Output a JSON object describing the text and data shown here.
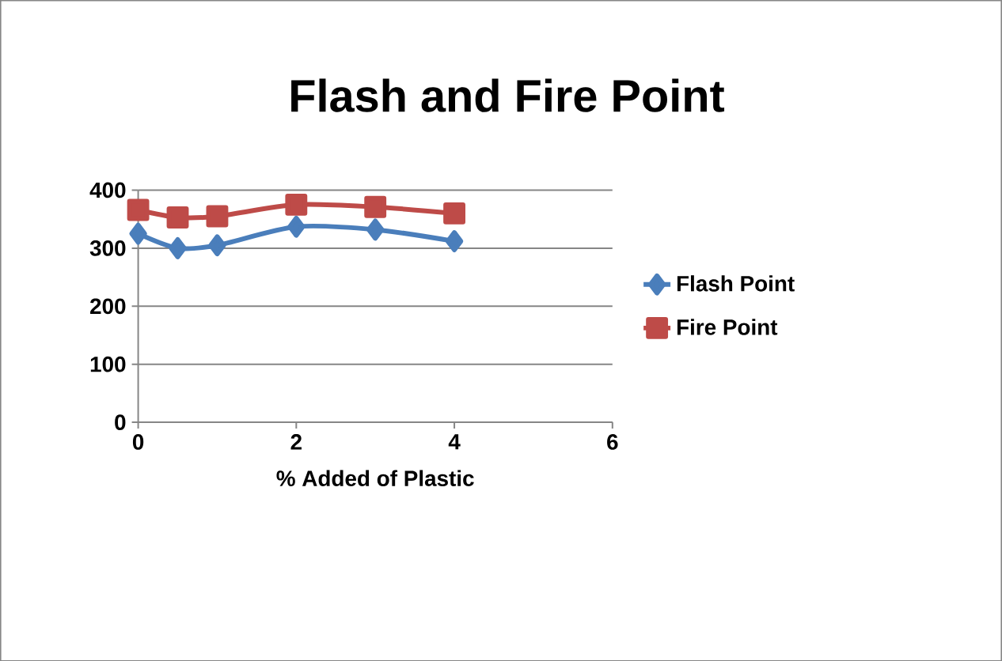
{
  "chart_data": {
    "type": "line",
    "title": "Flash and Fire Point",
    "xlabel": "% Added of Plastic",
    "x": [
      0,
      0.5,
      1,
      2,
      3,
      4
    ],
    "series": [
      {
        "name": "Flash Point",
        "color": "#4a7ebb",
        "marker": "diamond",
        "values": [
          325,
          300,
          305,
          337,
          332,
          312
        ]
      },
      {
        "name": "Fire Point",
        "color": "#be4b48",
        "marker": "square",
        "values": [
          366,
          353,
          355,
          375,
          371,
          360
        ]
      }
    ],
    "xlim": [
      0,
      6
    ],
    "xticks": [
      0,
      2,
      4,
      6
    ],
    "ylim": [
      0,
      400
    ],
    "yticks": [
      0,
      100,
      200,
      300,
      400
    ],
    "grid": "y",
    "legend": "right"
  }
}
